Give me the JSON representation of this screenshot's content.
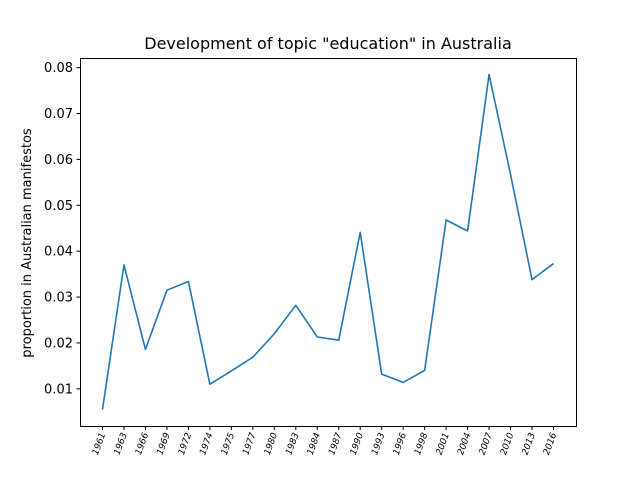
{
  "chart_data": {
    "type": "line",
    "title": "Development of topic \"education\" in Australia",
    "xlabel": "",
    "ylabel": "proportion in Australian manifestos",
    "categories": [
      "1961",
      "1963",
      "1966",
      "1969",
      "1972",
      "1974",
      "1975",
      "1977",
      "1980",
      "1983",
      "1984",
      "1987",
      "1990",
      "1993",
      "1996",
      "1998",
      "2001",
      "2004",
      "2007",
      "2010",
      "2013",
      "2016"
    ],
    "series": [
      {
        "values": [
          0.0055,
          0.037,
          0.0186,
          0.0315,
          0.0334,
          0.011,
          0.0139,
          0.0169,
          0.022,
          0.0282,
          0.0213,
          0.0206,
          0.0441,
          0.0132,
          0.0114,
          0.014,
          0.0468,
          0.0444,
          0.0785,
          0.0567,
          0.0338,
          0.0373
        ],
        "color": "#1f77b4"
      }
    ],
    "yticks": [
      0.01,
      0.02,
      0.03,
      0.04,
      0.05,
      0.06,
      0.07,
      0.08
    ],
    "ytick_labels": [
      "0.01",
      "0.02",
      "0.03",
      "0.04",
      "0.05",
      "0.06",
      "0.07",
      "0.08"
    ],
    "ylim": [
      0.0019,
      0.0821
    ],
    "grid": false,
    "legend": "none"
  }
}
